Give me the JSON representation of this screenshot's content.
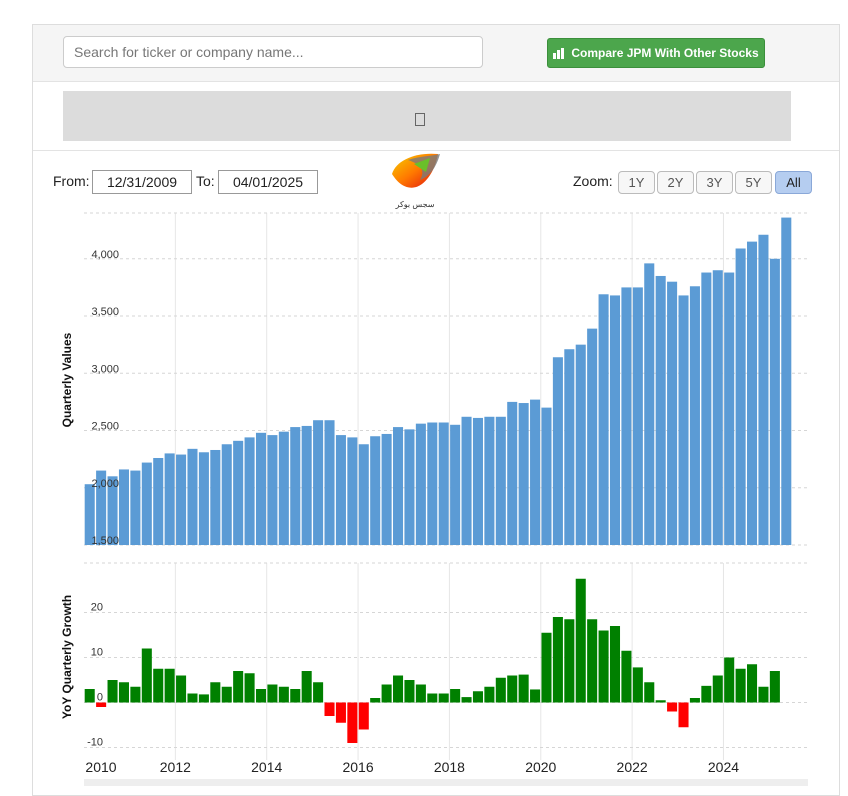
{
  "search": {
    "placeholder": "Search for ticker or company name..."
  },
  "compare_button": {
    "label": "Compare JPM With Other Stocks"
  },
  "dates": {
    "from_label": "From:",
    "from_value": "12/31/2009",
    "to_label": "To:",
    "to_value": "04/01/2025"
  },
  "zoom": {
    "label": "Zoom:",
    "options": [
      "1Y",
      "2Y",
      "3Y",
      "5Y",
      "All"
    ],
    "selected": "All"
  },
  "logo": {
    "text": "سجس بوكر"
  },
  "colors": {
    "bar": "#5b9bd5",
    "growth_positive": "#008000",
    "growth_negative": "#ff0000",
    "button": "#4ca64c",
    "zoom_active": "#b5cdf0"
  },
  "chart_data": [
    {
      "type": "bar",
      "ylabel": "Quarterly Values",
      "ylim": [
        1500,
        4400
      ],
      "yticks": [
        1500,
        2000,
        2500,
        3000,
        3500,
        4000
      ],
      "ytick_labels": [
        "1,500",
        "2,000",
        "2,500",
        "3,000",
        "3,500",
        "4,000"
      ],
      "x_tick_labels": [
        "2010",
        "2012",
        "2014",
        "2016",
        "2018",
        "2020",
        "2022",
        "2024"
      ],
      "grid": "vertical and horizontal dashed",
      "values": [
        2031,
        2150,
        2100,
        2160,
        2150,
        2220,
        2260,
        2300,
        2290,
        2340,
        2310,
        2330,
        2380,
        2410,
        2440,
        2480,
        2460,
        2490,
        2530,
        2540,
        2590,
        2590,
        2460,
        2440,
        2380,
        2450,
        2470,
        2530,
        2510,
        2560,
        2570,
        2570,
        2550,
        2620,
        2610,
        2620,
        2620,
        2750,
        2740,
        2770,
        2700,
        3140,
        3210,
        3250,
        3390,
        3690,
        3680,
        3750,
        3750,
        3960,
        3850,
        3800,
        3680,
        3760,
        3880,
        3900,
        3880,
        4090,
        4150,
        4210,
        4000,
        4360
      ]
    },
    {
      "type": "bar",
      "ylabel": "YoY Quarterly Growth",
      "ylim": [
        -11,
        31
      ],
      "yticks": [
        -10,
        0,
        10,
        20
      ],
      "ytick_labels": [
        "-10",
        "0",
        "10",
        "20"
      ],
      "values": [
        3,
        -1,
        5,
        4.5,
        3.5,
        12,
        7.5,
        7.5,
        6,
        2,
        1.8,
        4.5,
        3.5,
        7,
        6.5,
        3,
        4,
        3.5,
        3,
        7,
        4.5,
        -3,
        -4.5,
        -9,
        -6,
        1,
        4,
        6,
        5,
        4,
        2,
        2,
        3,
        1.2,
        2.5,
        3.5,
        5.5,
        6,
        6.2,
        2.9,
        15.5,
        19,
        18.5,
        27.5,
        18.5,
        16,
        17,
        11.5,
        7.8,
        4.5,
        0.5,
        -2,
        -5.5,
        1,
        3.7,
        6,
        10,
        7.5,
        8.5,
        3.5,
        7
      ]
    }
  ]
}
